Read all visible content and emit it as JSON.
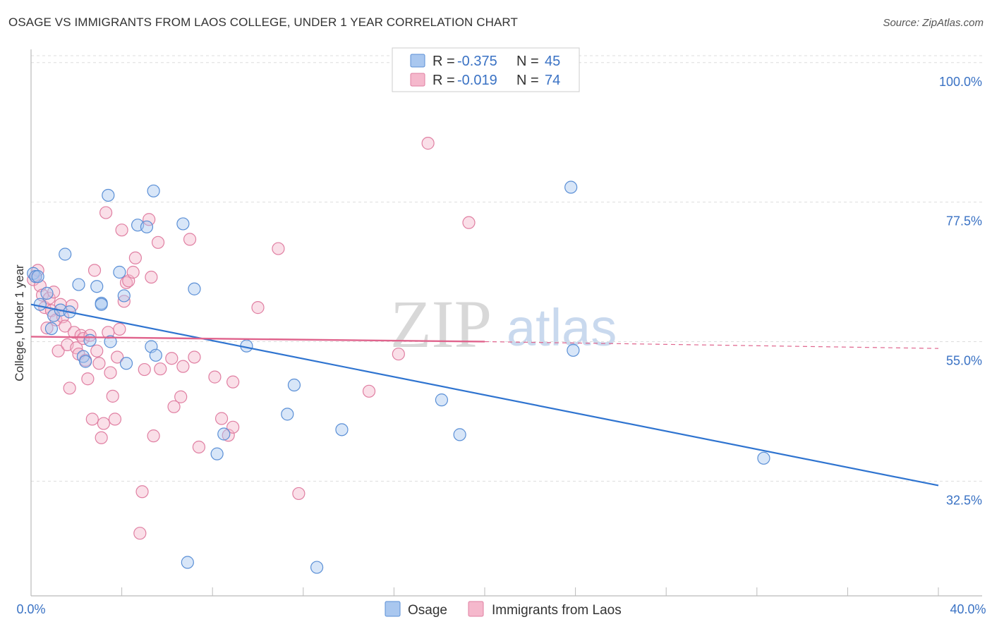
{
  "header": {
    "title": "OSAGE VS IMMIGRANTS FROM LAOS COLLEGE, UNDER 1 YEAR CORRELATION CHART",
    "source": "Source: ZipAtlas.com"
  },
  "watermark": {
    "zip": "ZIP",
    "atlas": "atlas"
  },
  "legend_box": {
    "rows": [
      {
        "r_label": "R =",
        "r_value": "-0.375",
        "n_label": "N =",
        "n_value": "45"
      },
      {
        "r_label": "R =",
        "r_value": "-0.019",
        "n_label": "N =",
        "n_value": "74"
      }
    ]
  },
  "bottom_legend": {
    "osage": "Osage",
    "laos": "Immigrants from Laos"
  },
  "colors": {
    "osage_fill": "#a9c7ef",
    "osage_stroke": "#5a8fd6",
    "osage_line": "#2f74d0",
    "laos_fill": "#f5b8cc",
    "laos_stroke": "#e07fa2",
    "laos_line": "#e0648d",
    "tick_text": "#3a72c4",
    "grid": "#dddddd"
  },
  "chart_data": {
    "type": "scatter",
    "title": "OSAGE VS IMMIGRANTS FROM LAOS COLLEGE, UNDER 1 YEAR CORRELATION CHART",
    "xlabel": "",
    "ylabel": "College, Under 1 year",
    "xlim": [
      0,
      40
    ],
    "ylim": [
      14,
      101
    ],
    "x_tick_labels": [
      "0.0%",
      "40.0%"
    ],
    "y_ticks": [
      32.5,
      55.0,
      77.5,
      100.0
    ],
    "y_tick_labels": [
      "32.5%",
      "55.0%",
      "77.5%",
      "100.0%"
    ],
    "grid": true,
    "series": [
      {
        "name": "Osage",
        "R": -0.375,
        "N": 45,
        "trend": {
          "x": [
            0,
            40
          ],
          "y": [
            61.0,
            31.8
          ],
          "dashed_from": null
        },
        "points": [
          [
            0.1,
            66.0
          ],
          [
            0.2,
            65.5
          ],
          [
            0.3,
            65.5
          ],
          [
            0.4,
            61.0
          ],
          [
            0.7,
            62.8
          ],
          [
            0.9,
            57.1
          ],
          [
            1.0,
            59.2
          ],
          [
            1.3,
            60.1
          ],
          [
            1.5,
            69.1
          ],
          [
            1.7,
            59.8
          ],
          [
            2.1,
            64.2
          ],
          [
            2.3,
            52.6
          ],
          [
            2.4,
            51.8
          ],
          [
            2.6,
            55.2
          ],
          [
            2.9,
            63.9
          ],
          [
            3.1,
            61.2
          ],
          [
            3.1,
            61.0
          ],
          [
            3.4,
            78.6
          ],
          [
            3.5,
            55.0
          ],
          [
            3.9,
            66.2
          ],
          [
            4.1,
            62.4
          ],
          [
            4.2,
            51.5
          ],
          [
            4.7,
            73.8
          ],
          [
            5.1,
            73.5
          ],
          [
            5.3,
            54.2
          ],
          [
            5.4,
            79.3
          ],
          [
            5.5,
            52.8
          ],
          [
            6.7,
            74.0
          ],
          [
            6.9,
            19.4
          ],
          [
            7.2,
            63.5
          ],
          [
            8.2,
            36.9
          ],
          [
            8.5,
            40.1
          ],
          [
            9.5,
            54.3
          ],
          [
            11.3,
            43.3
          ],
          [
            11.6,
            48.0
          ],
          [
            12.6,
            18.6
          ],
          [
            13.7,
            40.8
          ],
          [
            18.1,
            45.6
          ],
          [
            18.9,
            40.0
          ],
          [
            23.8,
            79.9
          ],
          [
            23.9,
            53.6
          ],
          [
            32.3,
            36.2
          ]
        ]
      },
      {
        "name": "Immigrants from Laos",
        "R": -0.019,
        "N": 74,
        "trend": {
          "x": [
            0,
            20,
            40
          ],
          "y": [
            55.8,
            55.0,
            53.9
          ],
          "dashed_from": 20
        },
        "points": [
          [
            0.1,
            65.0
          ],
          [
            0.2,
            65.5
          ],
          [
            0.3,
            66.5
          ],
          [
            0.4,
            64.0
          ],
          [
            0.5,
            62.5
          ],
          [
            0.6,
            60.5
          ],
          [
            0.7,
            57.2
          ],
          [
            0.8,
            62.0
          ],
          [
            0.9,
            60.0
          ],
          [
            1.0,
            63.0
          ],
          [
            1.1,
            58.5
          ],
          [
            1.2,
            53.5
          ],
          [
            1.3,
            61.0
          ],
          [
            1.4,
            59.0
          ],
          [
            1.5,
            57.5
          ],
          [
            1.6,
            54.5
          ],
          [
            1.7,
            47.5
          ],
          [
            1.8,
            60.8
          ],
          [
            1.9,
            56.5
          ],
          [
            2.0,
            54.0
          ],
          [
            2.1,
            53.0
          ],
          [
            2.2,
            56.0
          ],
          [
            2.3,
            55.5
          ],
          [
            2.4,
            52.0
          ],
          [
            2.5,
            49.0
          ],
          [
            2.6,
            56.0
          ],
          [
            2.7,
            42.5
          ],
          [
            2.8,
            66.5
          ],
          [
            2.9,
            53.5
          ],
          [
            3.0,
            51.5
          ],
          [
            3.1,
            39.5
          ],
          [
            3.2,
            41.8
          ],
          [
            3.3,
            75.8
          ],
          [
            3.4,
            56.5
          ],
          [
            3.5,
            50.0
          ],
          [
            3.6,
            46.2
          ],
          [
            3.7,
            42.5
          ],
          [
            3.8,
            52.5
          ],
          [
            3.9,
            57.0
          ],
          [
            4.0,
            73.0
          ],
          [
            4.1,
            61.5
          ],
          [
            4.2,
            64.5
          ],
          [
            4.3,
            64.8
          ],
          [
            4.5,
            66.2
          ],
          [
            4.6,
            68.5
          ],
          [
            4.9,
            30.8
          ],
          [
            4.8,
            24.1
          ],
          [
            5.0,
            50.5
          ],
          [
            5.2,
            74.7
          ],
          [
            5.3,
            65.4
          ],
          [
            5.4,
            39.8
          ],
          [
            5.6,
            71.0
          ],
          [
            5.7,
            50.6
          ],
          [
            6.2,
            52.3
          ],
          [
            6.3,
            44.5
          ],
          [
            6.6,
            46.1
          ],
          [
            6.7,
            51.0
          ],
          [
            7.0,
            71.5
          ],
          [
            7.2,
            52.5
          ],
          [
            7.4,
            38.0
          ],
          [
            8.1,
            49.3
          ],
          [
            8.4,
            42.6
          ],
          [
            8.7,
            39.9
          ],
          [
            8.9,
            48.5
          ],
          [
            8.9,
            41.2
          ],
          [
            10.0,
            60.5
          ],
          [
            10.9,
            70.0
          ],
          [
            11.8,
            30.5
          ],
          [
            14.9,
            47.0
          ],
          [
            16.2,
            53.0
          ],
          [
            17.5,
            87.0
          ],
          [
            19.3,
            74.2
          ]
        ]
      }
    ]
  }
}
